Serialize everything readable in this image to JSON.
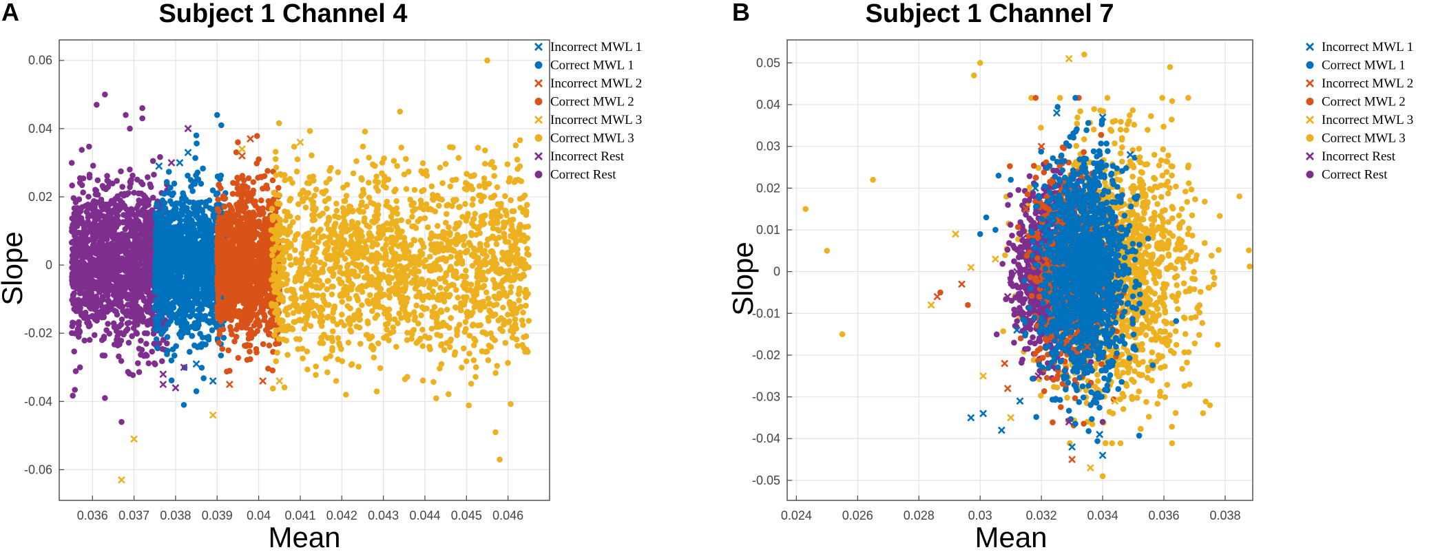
{
  "panels": [
    {
      "letter": "A"
    },
    {
      "letter": "B"
    }
  ],
  "legend_entries": [
    {
      "label": "Incorrect MWL 1",
      "marker": "x",
      "color": "#0072BD"
    },
    {
      "label": "Correct MWL 1",
      "marker": "o",
      "color": "#0072BD"
    },
    {
      "label": "Incorrect MWL 2",
      "marker": "x",
      "color": "#D95319"
    },
    {
      "label": "Correct MWL 2",
      "marker": "o",
      "color": "#D95319"
    },
    {
      "label": "Incorrect MWL 3",
      "marker": "x",
      "color": "#EDB120"
    },
    {
      "label": "Correct MWL 3",
      "marker": "o",
      "color": "#EDB120"
    },
    {
      "label": "Incorrect Rest",
      "marker": "x",
      "color": "#7E2F8E"
    },
    {
      "label": "Correct Rest",
      "marker": "o",
      "color": "#7E2F8E"
    }
  ],
  "chart_data": [
    {
      "type": "scatter",
      "title": "Subject 1 Channel 4",
      "xlabel": "Mean",
      "ylabel": "Slope",
      "xlim": [
        0.0352,
        0.047
      ],
      "ylim": [
        -0.069,
        0.066
      ],
      "xticks": [
        0.036,
        0.037,
        0.038,
        0.039,
        0.04,
        0.041,
        0.042,
        0.043,
        0.044,
        0.045,
        0.046
      ],
      "xtick_labels": [
        "0.036",
        "0.037",
        "0.038",
        "0.039",
        "0.04",
        "0.041",
        "0.042",
        "0.043",
        "0.044",
        "0.045",
        "0.046"
      ],
      "yticks": [
        -0.06,
        -0.04,
        -0.02,
        0,
        0.02,
        0.04,
        0.06
      ],
      "ytick_labels": [
        "-0.06",
        "-0.04",
        "-0.02",
        "0",
        "0.02",
        "0.04",
        "0.06"
      ],
      "grid": true,
      "legend_position": "outside-top-right",
      "series": [
        {
          "name": "Correct Rest",
          "marker": "o",
          "cluster": {
            "x_min": 0.0355,
            "x_max": 0.0378,
            "y_sd": 0.011
          },
          "approx_points": 1600,
          "outliers": [
            [
              0.0361,
              0.047
            ],
            [
              0.0363,
              0.05
            ],
            [
              0.0368,
              0.044
            ],
            [
              0.0372,
              0.046
            ],
            [
              0.0357,
              -0.03
            ],
            [
              0.0367,
              -0.046
            ],
            [
              0.0363,
              -0.039
            ],
            [
              0.0372,
              0.043
            ],
            [
              0.0369,
              0.04
            ]
          ]
        },
        {
          "name": "Correct MWL 1",
          "marker": "o",
          "cluster": {
            "x_min": 0.0375,
            "x_max": 0.0392,
            "y_sd": 0.01
          },
          "approx_points": 1500,
          "outliers": [
            [
              0.039,
              0.044
            ],
            [
              0.0391,
              0.041
            ],
            [
              0.0385,
              0.038
            ],
            [
              0.0382,
              -0.041
            ],
            [
              0.0385,
              -0.037
            ]
          ]
        },
        {
          "name": "Correct MWL 2",
          "marker": "o",
          "cluster": {
            "x_min": 0.039,
            "x_max": 0.0405,
            "y_sd": 0.01
          },
          "approx_points": 1500,
          "outliers": [
            [
              0.0395,
              0.036
            ],
            [
              0.04,
              0.031
            ],
            [
              0.0393,
              -0.031
            ]
          ]
        },
        {
          "name": "Correct MWL 3",
          "marker": "o",
          "cluster": {
            "x_min": 0.0403,
            "x_max": 0.0465,
            "y_sd": 0.014
          },
          "approx_points": 1700,
          "outliers": [
            [
              0.0455,
              0.06
            ],
            [
              0.0434,
              0.045
            ],
            [
              0.0458,
              -0.057
            ],
            [
              0.0457,
              -0.049
            ],
            [
              0.0421,
              -0.038
            ]
          ]
        },
        {
          "name": "Incorrect Rest",
          "marker": "x",
          "points": [
            [
              0.0383,
              0.04
            ],
            [
              0.0377,
              -0.035
            ],
            [
              0.038,
              -0.036
            ],
            [
              0.0377,
              -0.032
            ],
            [
              0.0382,
              -0.03
            ],
            [
              0.0379,
              0.03
            ]
          ]
        },
        {
          "name": "Incorrect MWL 1",
          "marker": "x",
          "points": [
            [
              0.0383,
              0.033
            ],
            [
              0.0381,
              0.03
            ],
            [
              0.0389,
              -0.034
            ],
            [
              0.0376,
              0.029
            ],
            [
              0.0385,
              -0.029
            ]
          ]
        },
        {
          "name": "Incorrect MWL 2",
          "marker": "x",
          "points": [
            [
              0.0398,
              0.037
            ],
            [
              0.0393,
              -0.035
            ],
            [
              0.0401,
              -0.034
            ],
            [
              0.0396,
              0.032
            ]
          ]
        },
        {
          "name": "Incorrect MWL 3",
          "marker": "x",
          "points": [
            [
              0.0367,
              -0.063
            ],
            [
              0.037,
              -0.051
            ],
            [
              0.0389,
              -0.044
            ],
            [
              0.0405,
              -0.034
            ],
            [
              0.0396,
              0.034
            ],
            [
              0.041,
              0.036
            ]
          ]
        }
      ]
    },
    {
      "type": "scatter",
      "title": "Subject 1 Channel 7",
      "xlabel": "Mean",
      "ylabel": "Slope",
      "xlim": [
        0.0237,
        0.0389
      ],
      "ylim": [
        -0.0548,
        0.0555
      ],
      "xticks": [
        0.024,
        0.026,
        0.028,
        0.03,
        0.032,
        0.034,
        0.036,
        0.038
      ],
      "xtick_labels": [
        "0.024",
        "0.026",
        "0.028",
        "0.03",
        "0.032",
        "0.034",
        "0.036",
        "0.038"
      ],
      "yticks": [
        -0.05,
        -0.04,
        -0.03,
        -0.02,
        -0.01,
        0,
        0.01,
        0.02,
        0.03,
        0.04,
        0.05
      ],
      "ytick_labels": [
        "-0.05",
        "-0.04",
        "-0.03",
        "-0.02",
        "-0.01",
        "0",
        "0.01",
        "0.02",
        "0.03",
        "0.04",
        "0.05"
      ],
      "grid": true,
      "legend_position": "outside-top-right",
      "series": [
        {
          "name": "Correct MWL 3",
          "marker": "o",
          "cluster": {
            "x_center": 0.0345,
            "x_sd": 0.0012,
            "y_sd": 0.015
          },
          "approx_points": 1400,
          "outliers": [
            [
              0.0243,
              0.015
            ],
            [
              0.03,
              0.05
            ],
            [
              0.0334,
              0.052
            ],
            [
              0.0362,
              0.049
            ],
            [
              0.034,
              -0.049
            ],
            [
              0.0255,
              -0.015
            ],
            [
              0.025,
              0.005
            ],
            [
              0.0265,
              0.022
            ],
            [
              0.0375,
              -0.032
            ],
            [
              0.0298,
              0.047
            ]
          ]
        },
        {
          "name": "Correct Rest",
          "marker": "o",
          "cluster": {
            "x_center": 0.0322,
            "x_sd": 0.0005,
            "y_sd": 0.01
          },
          "approx_points": 900,
          "outliers": [
            [
              0.034,
              -0.036
            ]
          ]
        },
        {
          "name": "Correct MWL 2",
          "marker": "o",
          "cluster": {
            "x_center": 0.033,
            "x_sd": 0.0006,
            "y_sd": 0.012
          },
          "approx_points": 800,
          "outliers": [
            [
              0.0296,
              -0.008
            ],
            [
              0.0287,
              -0.005
            ]
          ]
        },
        {
          "name": "Correct MWL 1",
          "marker": "o",
          "cluster": {
            "x_center": 0.0334,
            "x_sd": 0.0007,
            "y_sd": 0.013
          },
          "approx_points": 1500,
          "outliers": [
            [
              0.03,
              0.009
            ],
            [
              0.0302,
              0.013
            ],
            [
              0.0305,
              0.01
            ],
            [
              0.031,
              0.022
            ],
            [
              0.0306,
              0.023
            ]
          ]
        },
        {
          "name": "Incorrect MWL 1",
          "marker": "x",
          "points": [
            [
              0.0297,
              -0.035
            ],
            [
              0.0301,
              -0.034
            ],
            [
              0.0313,
              -0.031
            ],
            [
              0.0307,
              -0.038
            ],
            [
              0.0325,
              0.038
            ],
            [
              0.034,
              0.037
            ],
            [
              0.033,
              -0.042
            ],
            [
              0.0339,
              -0.039
            ],
            [
              0.034,
              -0.044
            ],
            [
              0.0349,
              0.028
            ],
            [
              0.0318,
              0.02
            ],
            [
              0.0312,
              -0.014
            ]
          ]
        },
        {
          "name": "Incorrect MWL 2",
          "marker": "x",
          "points": [
            [
              0.0286,
              -0.006
            ],
            [
              0.0294,
              -0.003
            ],
            [
              0.0315,
              0.015
            ],
            [
              0.033,
              -0.045
            ],
            [
              0.0309,
              -0.028
            ],
            [
              0.0308,
              -0.022
            ],
            [
              0.0335,
              -0.018
            ],
            [
              0.032,
              0.03
            ]
          ]
        },
        {
          "name": "Incorrect MWL 3",
          "marker": "x",
          "points": [
            [
              0.0329,
              0.051
            ],
            [
              0.0336,
              -0.047
            ],
            [
              0.0292,
              0.009
            ],
            [
              0.0305,
              0.003
            ],
            [
              0.0284,
              -0.008
            ],
            [
              0.0297,
              0.001
            ],
            [
              0.0301,
              -0.025
            ],
            [
              0.031,
              -0.035
            ],
            [
              0.0344,
              -0.031
            ],
            [
              0.0352,
              0.027
            ]
          ]
        },
        {
          "name": "Incorrect Rest",
          "marker": "x",
          "points": [
            [
              0.0312,
              0.0
            ],
            [
              0.031,
              -0.002
            ],
            [
              0.0313,
              0.004
            ],
            [
              0.0309,
              -0.006
            ],
            [
              0.0315,
              -0.01
            ],
            [
              0.0319,
              -0.025
            ],
            [
              0.0329,
              -0.036
            ],
            [
              0.0314,
              0.008
            ]
          ]
        }
      ]
    }
  ]
}
